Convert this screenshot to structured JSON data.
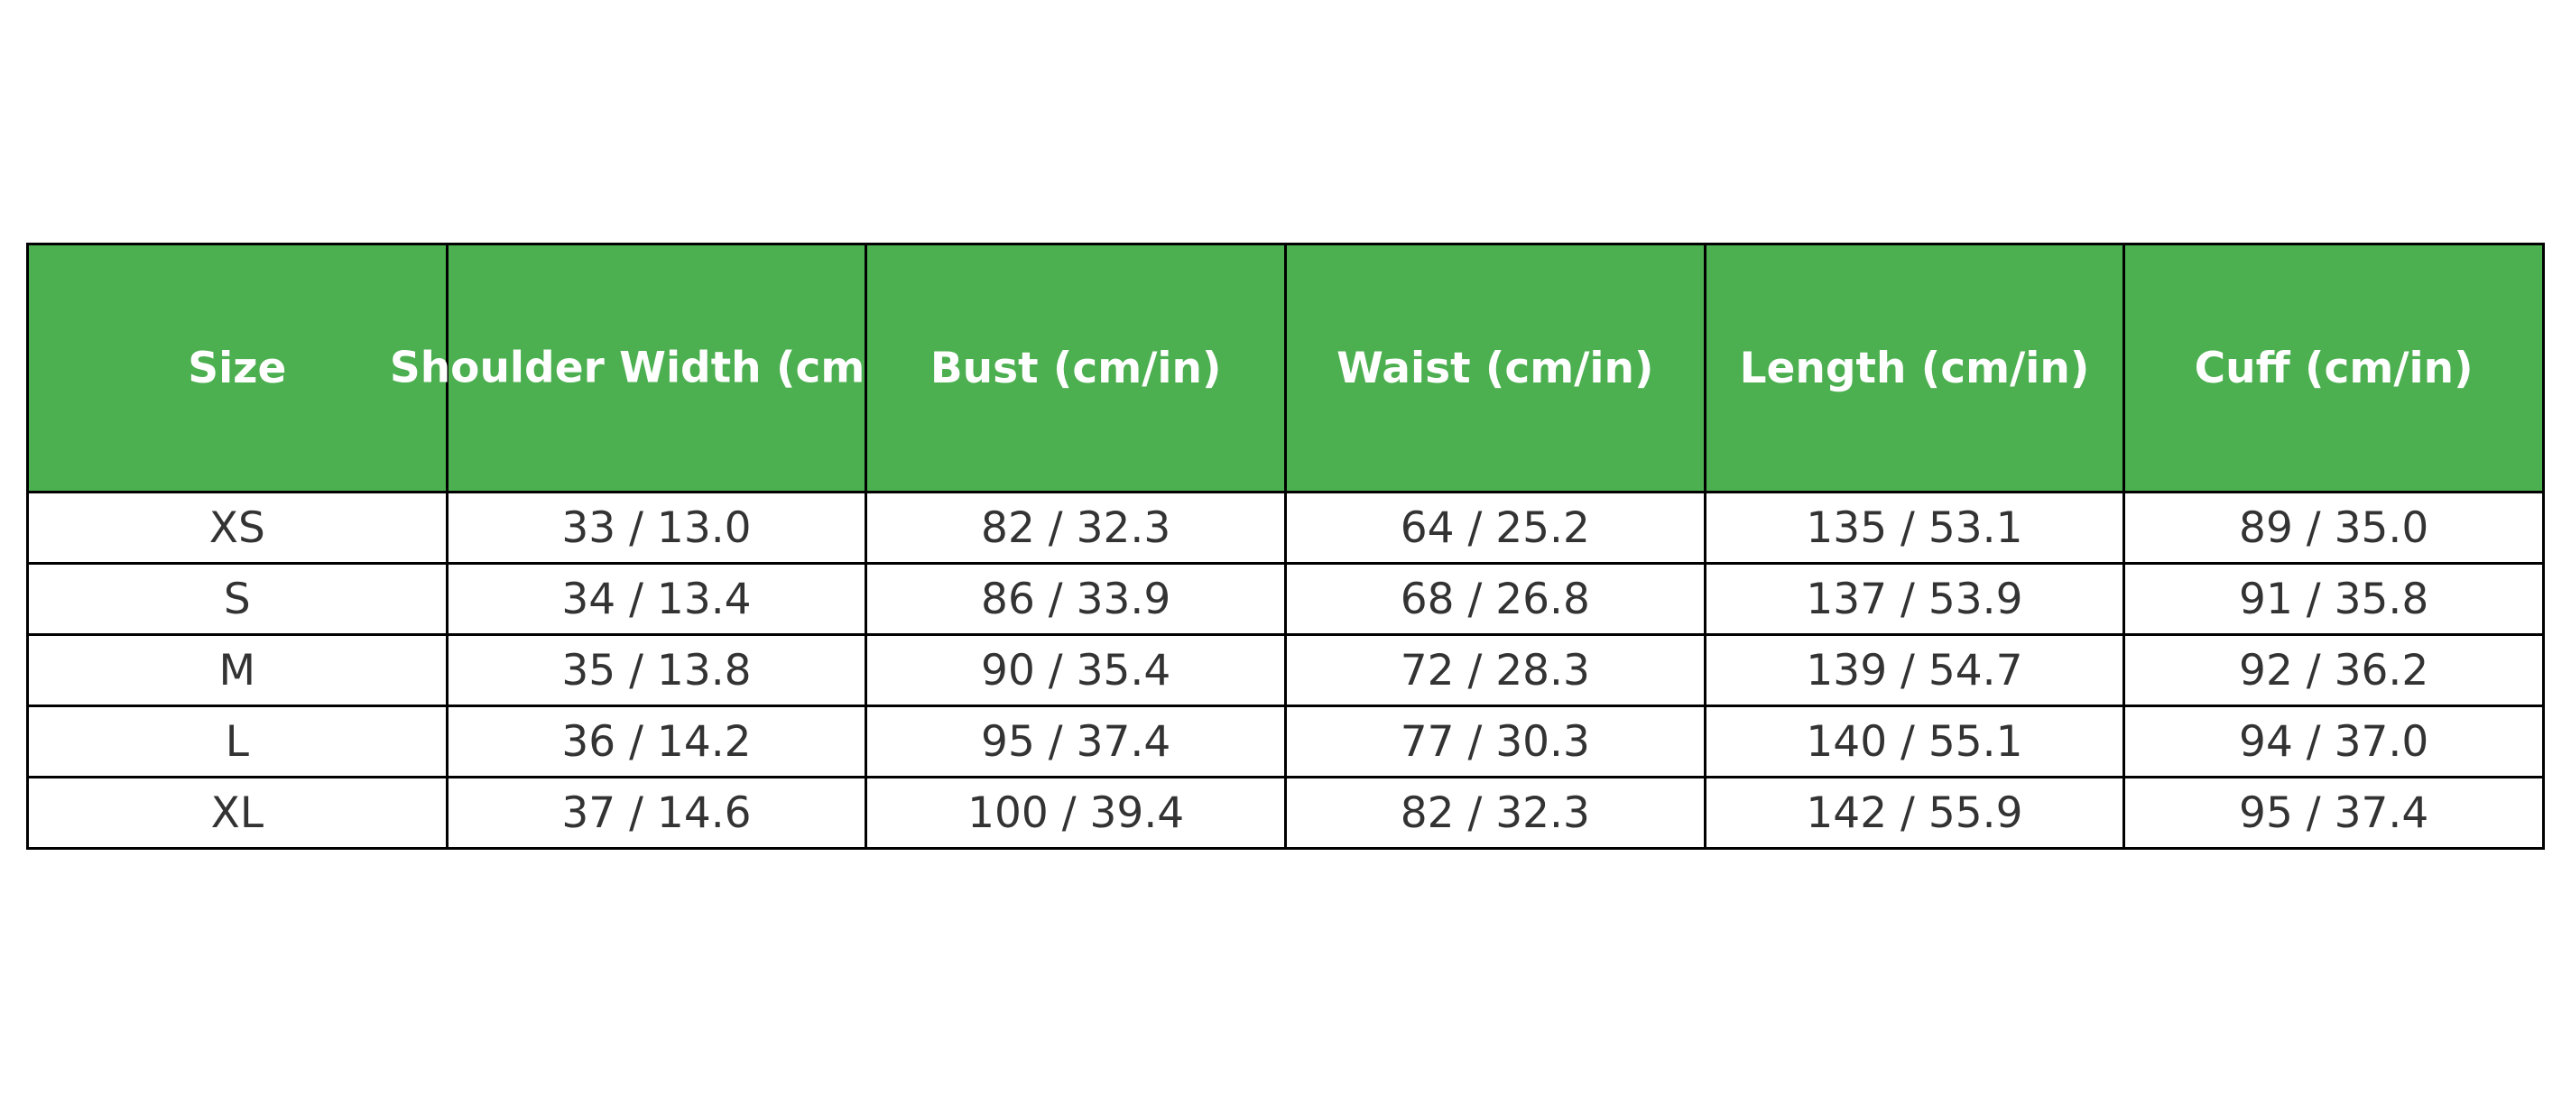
{
  "table": {
    "header_color": "#4caf50",
    "headers": [
      "Size",
      "Shoulder Width (cm",
      "Bust (cm/in)",
      "Waist (cm/in)",
      "Length (cm/in)",
      "Cuff (cm/in)"
    ],
    "rows": [
      [
        "XS",
        "33 / 13.0",
        "82 / 32.3",
        "64 / 25.2",
        "135 / 53.1",
        "89 / 35.0"
      ],
      [
        "S",
        "34 / 13.4",
        "86 / 33.9",
        "68 / 26.8",
        "137 / 53.9",
        "91 / 35.8"
      ],
      [
        "M",
        "35 / 13.8",
        "90 / 35.4",
        "72 / 28.3",
        "139 / 54.7",
        "92 / 36.2"
      ],
      [
        "L",
        "36 / 14.2",
        "95 / 37.4",
        "77 / 30.3",
        "140 / 55.1",
        "94 / 37.0"
      ],
      [
        "XL",
        "37 / 14.6",
        "100 / 39.4",
        "82 / 32.3",
        "142 / 55.9",
        "95 / 37.4"
      ]
    ]
  }
}
